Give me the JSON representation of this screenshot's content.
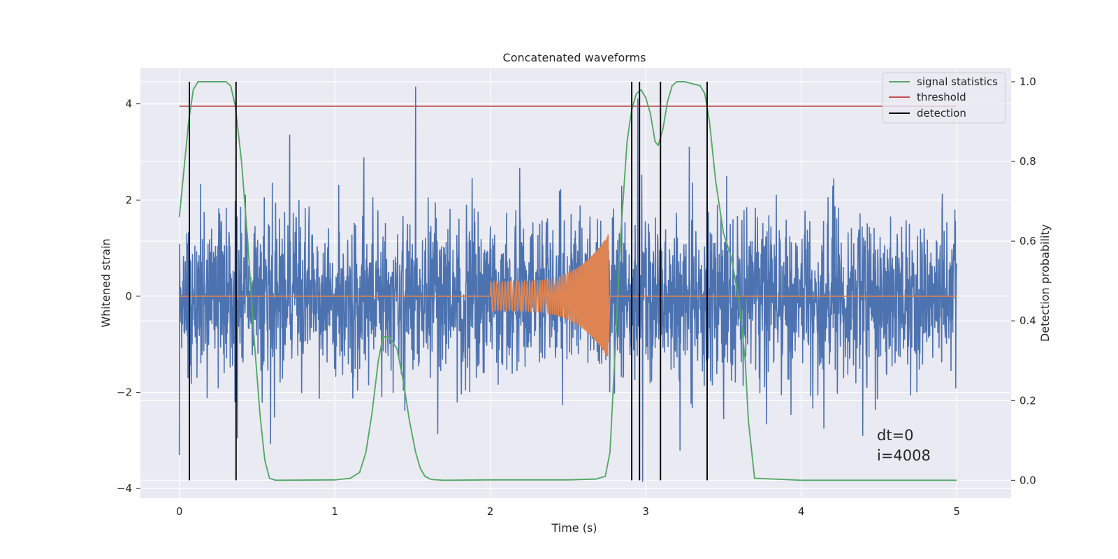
{
  "chart_data": {
    "type": "line",
    "title": "Concatenated waveforms",
    "xlabel": "Time (s)",
    "ylabel": "Whitened strain",
    "y2label": "Detection probability",
    "xlim": [
      -0.25,
      5.35
    ],
    "ylim": [
      -4.2,
      4.75
    ],
    "y2lim": [
      -0.045,
      1.035
    ],
    "xticks": [
      0,
      1,
      2,
      3,
      4,
      5
    ],
    "yticks": [
      -4,
      -2,
      0,
      2,
      4
    ],
    "y2ticks": [
      0.0,
      0.2,
      0.4,
      0.6,
      0.8,
      1.0
    ],
    "xtick_labels": [
      "0",
      "1",
      "2",
      "3",
      "4",
      "5"
    ],
    "ytick_labels": [
      "−4",
      "−2",
      "0",
      "2",
      "4"
    ],
    "y2tick_labels": [
      "0.0",
      "0.2",
      "0.4",
      "0.6",
      "0.8",
      "1.0"
    ],
    "grid": true,
    "legend_position": "top-right",
    "colors": {
      "background": "#eaeaf2",
      "grid": "#ffffff",
      "strain": "#4c72b0",
      "waveform": "#dd8452",
      "signal": "#55a868",
      "threshold": "#c44e52",
      "detection": "#000000"
    },
    "series": [
      {
        "name": "",
        "axis": "left",
        "role": "strain",
        "x_range": [
          0,
          5
        ],
        "noise_sigma": 0.85
      },
      {
        "name": "",
        "axis": "left",
        "role": "waveform",
        "x_range": [
          2.0,
          2.76
        ],
        "amplitude_start": 0.3,
        "amplitude_end": 1.3
      },
      {
        "name": "signal statistics",
        "axis": "right",
        "x": [
          0.0,
          0.03,
          0.06,
          0.09,
          0.12,
          0.16,
          0.2,
          0.3,
          0.33,
          0.36,
          0.4,
          0.44,
          0.48,
          0.52,
          0.55,
          0.58,
          0.62,
          1.0,
          1.1,
          1.16,
          1.2,
          1.24,
          1.28,
          1.31,
          1.35,
          1.4,
          1.44,
          1.48,
          1.52,
          1.55,
          1.58,
          1.62,
          1.7,
          2.0,
          2.5,
          2.68,
          2.74,
          2.77,
          2.8,
          2.84,
          2.88,
          2.91,
          2.94,
          2.97,
          3.0,
          3.03,
          3.06,
          3.08,
          3.11,
          3.14,
          3.17,
          3.2,
          3.25,
          3.35,
          3.38,
          3.41,
          3.45,
          3.5,
          3.55,
          3.6,
          3.64,
          3.66,
          3.7,
          4.0,
          5.0
        ],
        "y": [
          0.66,
          0.78,
          0.9,
          0.98,
          1.0,
          1.0,
          1.0,
          1.0,
          0.99,
          0.94,
          0.8,
          0.6,
          0.36,
          0.16,
          0.05,
          0.005,
          0.0,
          0.001,
          0.005,
          0.02,
          0.07,
          0.17,
          0.3,
          0.36,
          0.36,
          0.33,
          0.25,
          0.15,
          0.07,
          0.03,
          0.01,
          0.002,
          0.0,
          0.001,
          0.001,
          0.003,
          0.01,
          0.07,
          0.3,
          0.62,
          0.85,
          0.93,
          0.97,
          0.98,
          0.96,
          0.92,
          0.85,
          0.84,
          0.88,
          0.95,
          0.99,
          1.0,
          1.0,
          0.99,
          0.97,
          0.9,
          0.75,
          0.62,
          0.56,
          0.45,
          0.3,
          0.15,
          0.005,
          0.0,
          0.0
        ]
      },
      {
        "name": "threshold",
        "axis": "left",
        "x": [
          0,
          5
        ],
        "y": [
          3.95,
          3.95
        ]
      },
      {
        "name": "detection",
        "axis": "right",
        "x": [
          0.065,
          0.365,
          2.91,
          2.96,
          3.095,
          3.395
        ],
        "y_range": [
          0,
          1
        ]
      }
    ],
    "spikes": [
      {
        "x": 1.52,
        "y": 4.35
      },
      {
        "x": 0.71,
        "y": 3.35
      },
      {
        "x": 2.95,
        "y": 4.1
      },
      {
        "x": 3.28,
        "y": 3.1
      },
      {
        "x": 0.0,
        "y": -3.3
      },
      {
        "x": 2.98,
        "y": -3.85
      },
      {
        "x": 3.22,
        "y": -3.2
      }
    ],
    "annotations": [
      "dt=0",
      "i=4008"
    ]
  }
}
